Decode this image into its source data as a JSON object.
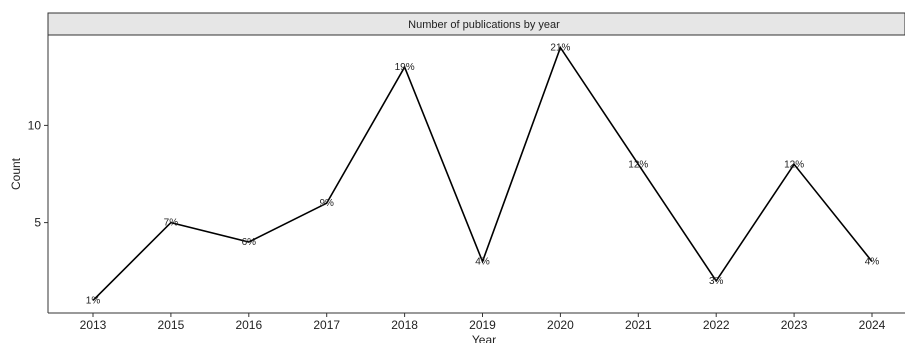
{
  "chart_data": {
    "type": "line",
    "title": "Number of publications by year",
    "xlabel": "Year",
    "ylabel": "Count",
    "categories": [
      "2013",
      "2015",
      "2016",
      "2017",
      "2018",
      "2019",
      "2020",
      "2021",
      "2022",
      "2023",
      "2024"
    ],
    "values": [
      1,
      5,
      4,
      6,
      13,
      3,
      14,
      8,
      2,
      8,
      3
    ],
    "data_labels": [
      "1%",
      "7%",
      "6%",
      "9%",
      "19%",
      "4%",
      "21%",
      "12%",
      "3%",
      "12%",
      "4%"
    ],
    "yticks": [
      5,
      10
    ],
    "ylim": [
      0.35,
      14.65
    ],
    "grid": false,
    "legend": "none",
    "line_color": "#000000"
  }
}
